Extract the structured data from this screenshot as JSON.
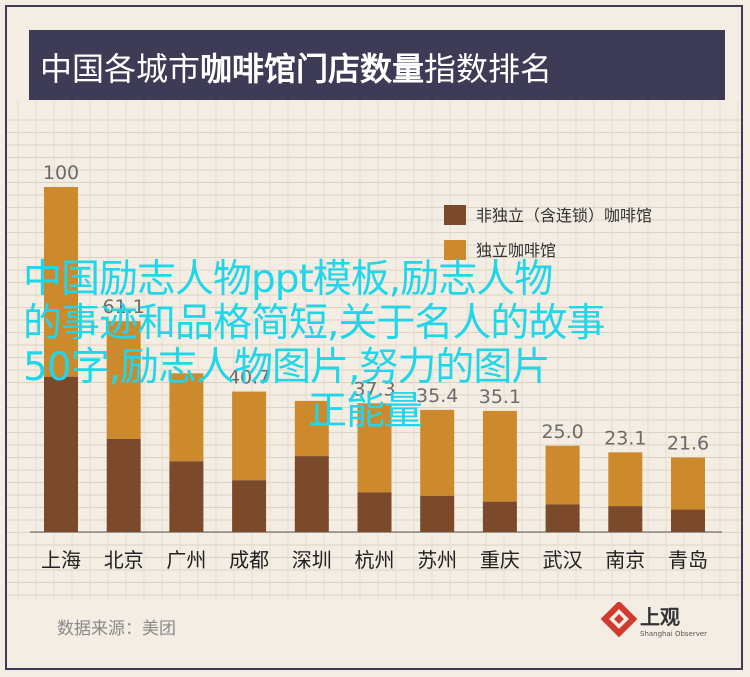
{
  "title": {
    "part1": "中国各城市",
    "part2": "咖啡馆门店数量",
    "part3": "指数排名"
  },
  "source_label": "数据来源：美团",
  "logo": {
    "name": "上观",
    "subtitle": "Shanghai Observer"
  },
  "overlay": {
    "line1": "中国励志人物ppt模板,励志人物",
    "line2": "的事迹和品格简短,关于名人的故事",
    "line3": "50字,励志人物图片,努力的图片",
    "line4": "正能量"
  },
  "colors": {
    "title_band": "#3d3b55",
    "background": "#f3ede4",
    "non_independent": "#7a4a2b",
    "independent": "#cc8a2c",
    "overlay_text": "#21d6e8"
  },
  "chart_data": {
    "type": "bar",
    "stacked": true,
    "categories": [
      "上海",
      "北京",
      "广州",
      "成都",
      "深圳",
      "杭州",
      "苏州",
      "重庆",
      "武汉",
      "南京",
      "青岛"
    ],
    "totals": [
      100,
      61.1,
      46.0,
      40.7,
      38.0,
      37.3,
      35.4,
      35.1,
      25.0,
      23.1,
      21.6
    ],
    "total_labels": [
      "100",
      "61.1",
      "",
      "40.7",
      "",
      "37.3",
      "35.4",
      "35.1",
      "25.0",
      "23.1",
      "21.6"
    ],
    "series": [
      {
        "name": "非独立（含连锁）咖啡馆",
        "values": [
          45,
          27,
          20.5,
          15,
          22,
          11.5,
          10.5,
          8.8,
          8,
          7.5,
          6.5
        ]
      },
      {
        "name": "独立咖啡馆",
        "values": [
          55,
          34.1,
          25.5,
          25.7,
          16,
          25.8,
          24.9,
          26.3,
          17,
          15.6,
          15.1
        ]
      }
    ],
    "ylim": [
      0,
      100
    ],
    "legend_position": "top-right",
    "grid": true
  }
}
